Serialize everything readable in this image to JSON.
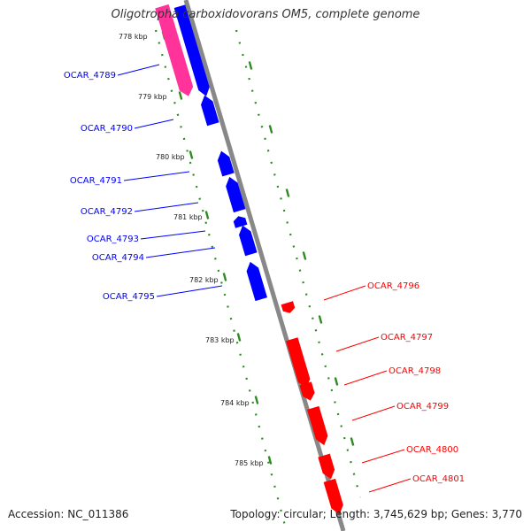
{
  "title": "Oligotropha carboxidovorans OM5, complete genome",
  "footer": {
    "accession": "Accession: NC_011386",
    "summary": "Topology: circular; Length: 3,745,629 bp; Genes: 3,770"
  },
  "colors": {
    "reverse_strand": "#0000ff",
    "forward_strand": "#ff0000",
    "highlight": "#ff3399",
    "backbone": "#888888",
    "ticks": "#2e8b22"
  },
  "scale_labels": [
    "778 kbp",
    "779 kbp",
    "780 kbp",
    "781 kbp",
    "782 kbp",
    "783 kbp",
    "784 kbp",
    "785 kbp"
  ],
  "genes": [
    {
      "id": "OCAR_4789",
      "strand": "reverse"
    },
    {
      "id": "OCAR_4790",
      "strand": "reverse"
    },
    {
      "id": "OCAR_4791",
      "strand": "reverse"
    },
    {
      "id": "OCAR_4792",
      "strand": "reverse"
    },
    {
      "id": "OCAR_4793",
      "strand": "reverse"
    },
    {
      "id": "OCAR_4794",
      "strand": "reverse"
    },
    {
      "id": "OCAR_4795",
      "strand": "reverse"
    },
    {
      "id": "OCAR_4796",
      "strand": "forward"
    },
    {
      "id": "OCAR_4797",
      "strand": "forward"
    },
    {
      "id": "OCAR_4798",
      "strand": "forward"
    },
    {
      "id": "OCAR_4799",
      "strand": "forward"
    },
    {
      "id": "OCAR_4800",
      "strand": "forward"
    },
    {
      "id": "OCAR_4801",
      "strand": "forward"
    }
  ]
}
